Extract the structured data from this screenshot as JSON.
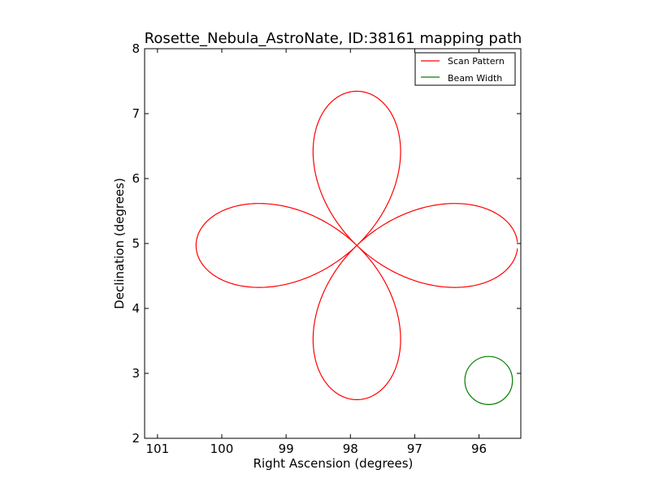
{
  "chart_data": {
    "type": "line",
    "title": "Rosette_Nebula_AstroNate, ID:38161 mapping path",
    "xlabel": "Right Ascension (degrees)",
    "ylabel": "Declination (degrees)",
    "xlim": [
      101.2,
      95.35
    ],
    "ylim": [
      2,
      8
    ],
    "x_inverted": true,
    "xticks": [
      "101",
      "100",
      "99",
      "98",
      "97",
      "96"
    ],
    "yticks": [
      "2",
      "3",
      "4",
      "5",
      "6",
      "7",
      "8"
    ],
    "legend_position": "top-right",
    "series": [
      {
        "name": "Scan Pattern",
        "color": "#ff0000",
        "shape": "four-petal rosette",
        "center": [
          97.9,
          4.97
        ],
        "petal_length_ra": 2.5,
        "petal_length_dec": 2.5,
        "gap_near": 100.42
      },
      {
        "name": "Beam Width",
        "color": "#008000",
        "shape": "circle",
        "center": [
          95.85,
          2.89
        ],
        "radius": 0.37
      }
    ]
  }
}
